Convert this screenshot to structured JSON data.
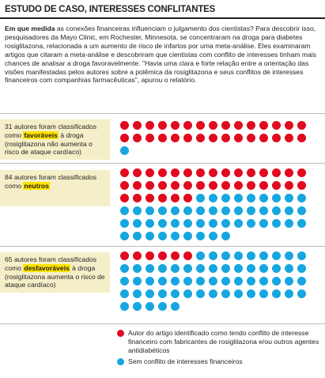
{
  "header": {
    "title": "ESTUDO DE CASO, INTERESSES CONFLITANTES"
  },
  "intro": {
    "lead": "Em que medida",
    "text": " as conexões financeiras influenciam o julgamento dos cientistas? Para descobrir isso, pesquisadores da Mayo Clinic, em Rochester, Minnesota, se concentraram na droga para diabetes rosiglitazona, relacionada a um aumento de risco de infartos por uma meta-análise. Eles examinaram artigos que citaram a meta-análise e descobriram que cientistas com conflito de interesses tinham mais chances de analisar a droga favoravelmente. \"Havia uma clara e forte relação entre a orientação das visões manifestadas pelos autores sobre a polêmica da rosiglitazona e seus conflitos de interesses financeiros com companhias farmacêuticas\", apurou o relatório."
  },
  "colors": {
    "conflict": "#e10a1f",
    "no_conflict": "#16a6e0",
    "highlight": "#ffe300",
    "label_bg": "#f5efc9"
  },
  "groups": [
    {
      "pre": "31 autores foram classificados como ",
      "key": "favoráveis",
      "post": " à droga (rosiglitazona não aumenta o risco de ataque cardíaco)",
      "total": 31,
      "with_conflict": 30,
      "without_conflict": 1
    },
    {
      "pre": "84 autores foram classificados como ",
      "key": "neutros",
      "post": "",
      "total": 84,
      "with_conflict": 36,
      "without_conflict": 48
    },
    {
      "pre": "65 autores foram classificados como ",
      "key": "desfavoráveis",
      "post": " à droga (rosiglitazona aumenta o risco de ataque cardíaco)",
      "total": 65,
      "with_conflict": 6,
      "without_conflict": 59
    }
  ],
  "legend": {
    "conflict": "Autor do artigo identificado como tendo conflito de interesse financeiro com fabricantes de rosiglitazona e/ou outros agentes antidiabéticos",
    "no_conflict": "Sem conflito de interesses financeiros"
  }
}
